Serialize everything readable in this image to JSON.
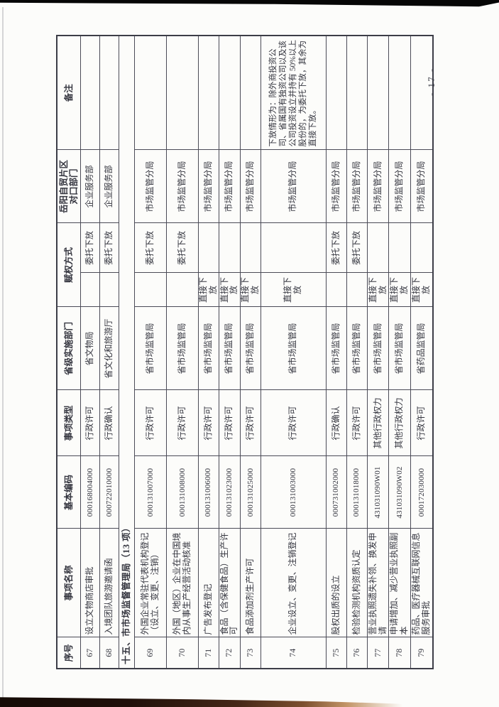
{
  "page": {
    "page_number": "- 17 -"
  },
  "table": {
    "headers": {
      "index": "序号",
      "name": "事项名称",
      "code": "基本编码",
      "type": "事项类型",
      "provincial_dept": "省级实施部门",
      "empowerment": "赋权方式",
      "ftz_dept_line1": "岳阳自贸片区",
      "ftz_dept_line2": "对口部门",
      "remarks": "备注"
    },
    "rows": [
      {
        "kind": "item",
        "index": "67",
        "name": "设立文物商店审批",
        "code": "000168004000",
        "type": "行政许可",
        "provincial_dept": "省文物局",
        "empower_direct": "",
        "empower_delegate": "委托下放",
        "ftz_dept": "企业服务部",
        "remarks": ""
      },
      {
        "kind": "item",
        "index": "68",
        "name": "入境团队旅游邀请函",
        "code": "000722010000",
        "type": "行政确认",
        "provincial_dept": "省文化和旅游厅",
        "empower_direct": "",
        "empower_delegate": "委托下放",
        "ftz_dept": "企业服务部",
        "remarks": ""
      },
      {
        "kind": "section",
        "title": "十五、市市场监督管理局（13 项）"
      },
      {
        "kind": "item",
        "index": "69",
        "name": "外国企业常驻代表机构登记（设立、变更、注销）",
        "code": "000131007000",
        "type": "行政许可",
        "provincial_dept": "省市场监管局",
        "empower_direct": "",
        "empower_delegate": "委托下放",
        "ftz_dept": "市场监管分局",
        "remarks": ""
      },
      {
        "kind": "item",
        "index": "70",
        "name": "外国（地区）企业在中国境内从事生产经营活动核准",
        "code": "000131008000",
        "type": "行政许可",
        "provincial_dept": "省市场监管局",
        "empower_direct": "",
        "empower_delegate": "委托下放",
        "ftz_dept": "市场监管分局",
        "remarks": ""
      },
      {
        "kind": "item",
        "index": "71",
        "name": "广告发布登记",
        "code": "000131006000",
        "type": "行政许可",
        "provincial_dept": "省市场监管局",
        "empower_direct": "直接下放",
        "empower_delegate": "",
        "ftz_dept": "市场监管分局",
        "remarks": ""
      },
      {
        "kind": "item",
        "index": "72",
        "name": "食品（含保健食品）生产许可",
        "code": "000131023000",
        "type": "行政许可",
        "provincial_dept": "省市场监管局",
        "empower_direct": "直接下放",
        "empower_delegate": "",
        "ftz_dept": "市场监管分局",
        "remarks": ""
      },
      {
        "kind": "item",
        "index": "73",
        "name": "食品添加剂生产许可",
        "code": "000131025000",
        "type": "行政许可",
        "provincial_dept": "省市场监管局",
        "empower_direct": "直接下放",
        "empower_delegate": "",
        "ftz_dept": "市场监管分局",
        "remarks": ""
      },
      {
        "kind": "item",
        "index": "74",
        "name": "企业设立、变更、注销登记",
        "code": "000131003000",
        "type": "行政许可",
        "provincial_dept": "省市场监管局",
        "empower_direct": "直接下放",
        "empower_delegate": "",
        "ftz_dept": "市场监管分局",
        "remarks": "下放情形为：除外商投资公司、省属国有独资公司以及该公司投资设立并持有 50%以上股份的，为委托下放，其余为直接下放。"
      },
      {
        "kind": "item",
        "index": "75",
        "name": "股权出质的设立",
        "code": "000731002000",
        "type": "行政确认",
        "provincial_dept": "省市场监管局",
        "empower_direct": "",
        "empower_delegate": "委托下放",
        "ftz_dept": "市场监管分局",
        "remarks": ""
      },
      {
        "kind": "item",
        "index": "76",
        "name": "检验检测机构资质认定",
        "code": "000131018000",
        "type": "行政许可",
        "provincial_dept": "省市场监管局",
        "empower_direct": "",
        "empower_delegate": "委托下放",
        "ftz_dept": "市场监管分局",
        "remarks": ""
      },
      {
        "kind": "item",
        "index": "77",
        "name": "营业执照遗失补领、换发申请",
        "code": "431031090W01",
        "type": "其他行政权力",
        "provincial_dept": "省市场监管局",
        "empower_direct": "直接下放",
        "empower_delegate": "",
        "ftz_dept": "市场监管分局",
        "remarks": ""
      },
      {
        "kind": "item",
        "index": "78",
        "name": "申请增加、减少营业执照副本",
        "code": "431031090W02",
        "type": "其他行政权力",
        "provincial_dept": "省市场监管局",
        "empower_direct": "直接下放",
        "empower_delegate": "",
        "ftz_dept": "市场监管分局",
        "remarks": ""
      },
      {
        "kind": "item",
        "index": "79",
        "name": "药品、医疗器械互联网信息服务审批",
        "code": "000172030000",
        "type": "行政许可",
        "provincial_dept": "省药品监管局",
        "empower_direct": "直接下放",
        "empower_delegate": "",
        "ftz_dept": "市场监管分局",
        "remarks": ""
      }
    ]
  }
}
